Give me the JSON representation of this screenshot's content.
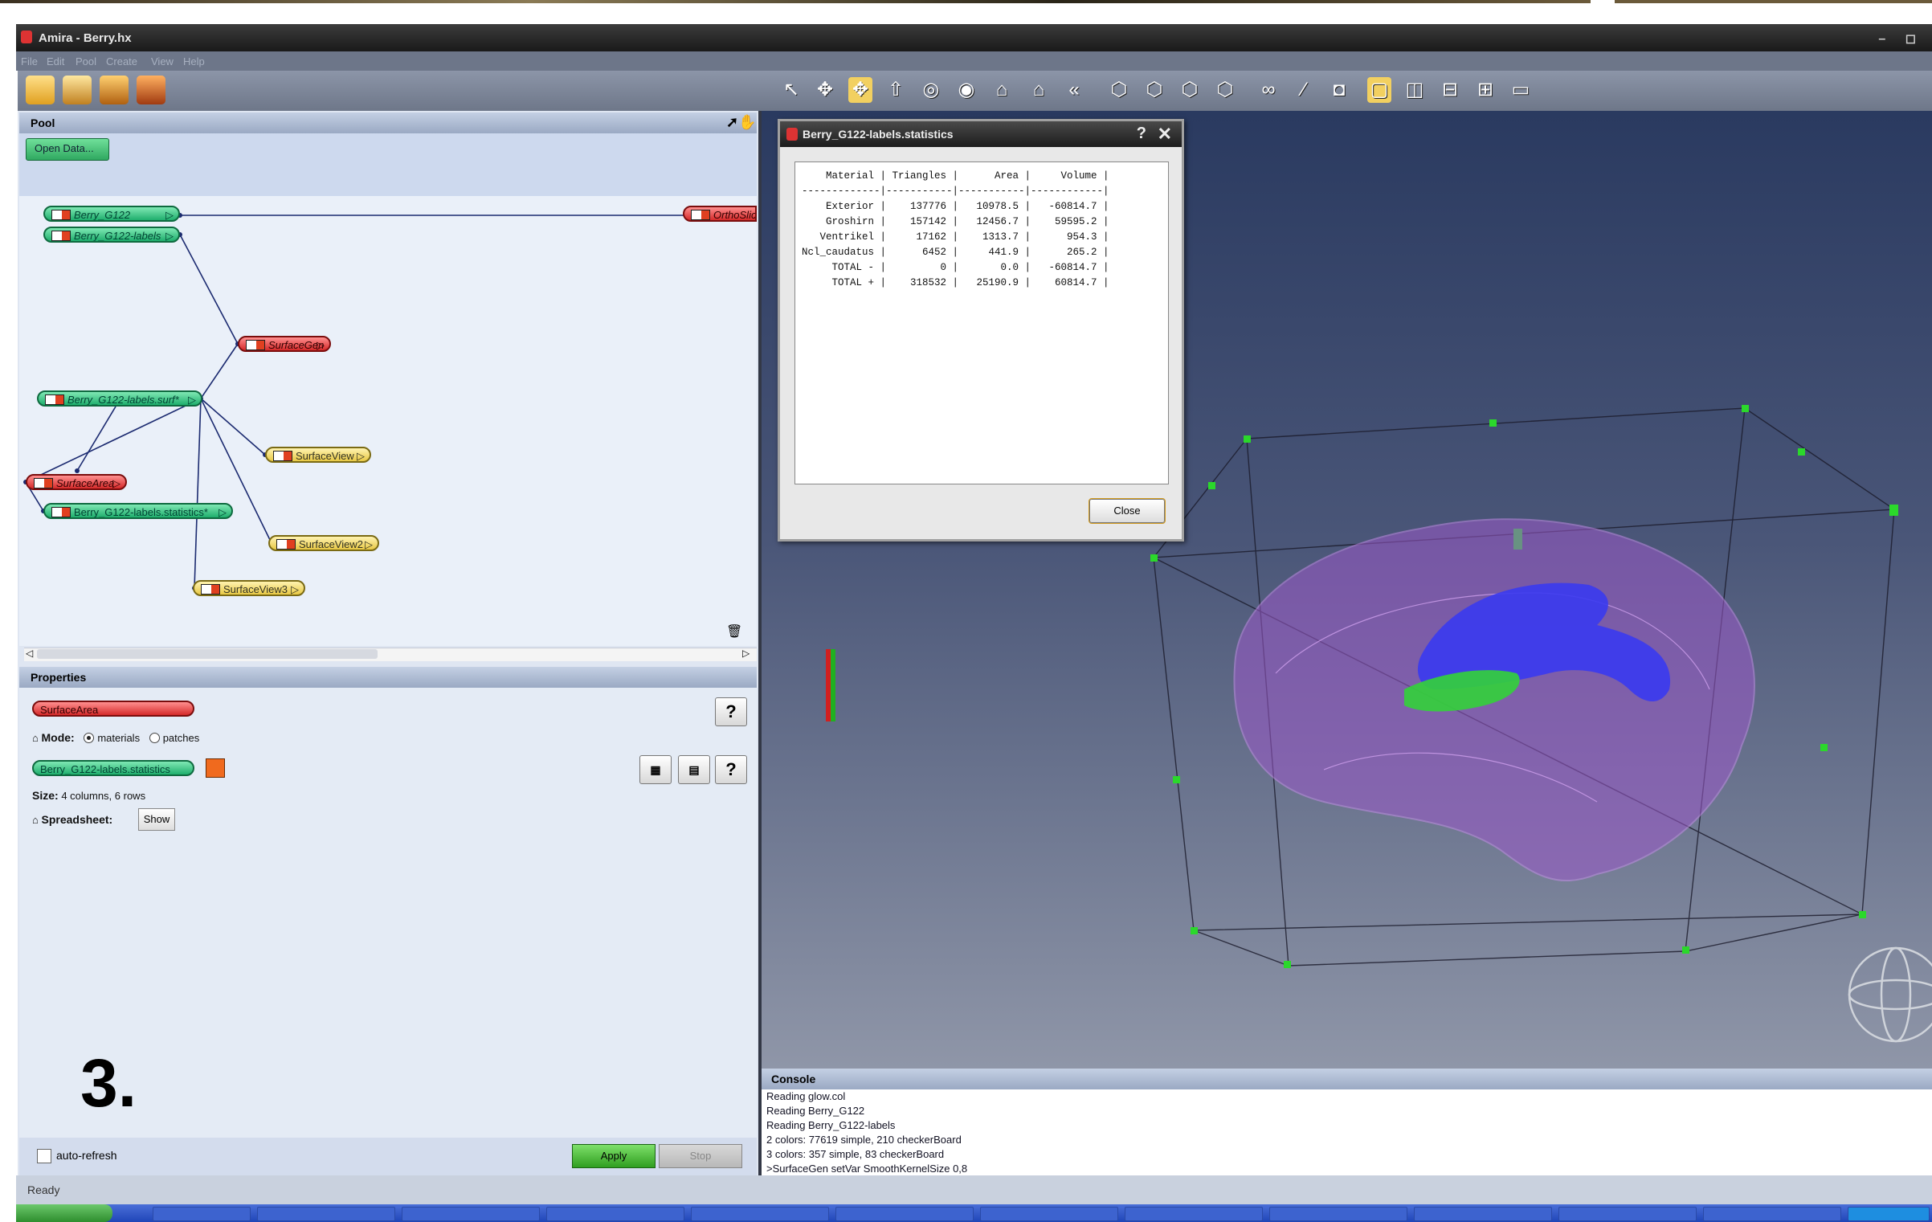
{
  "window": {
    "title": "Amira - Berry.hx",
    "menu": [
      "File",
      "Edit",
      "Pool",
      "Create",
      "View",
      "Help"
    ]
  },
  "pool": {
    "header": "Pool",
    "open_data_label": "Open Data...",
    "nodes": {
      "berry_g122": "Berry_G122",
      "berry_g122_labels": "Berry_G122-labels",
      "ortho_slice": "OrthoSlice",
      "surface_gen": "SurfaceGen",
      "labels_surf": "Berry_G122-labels.surf*",
      "surface_view": "SurfaceView",
      "surface_area": "SurfaceArea",
      "labels_statistics": "Berry_G122-labels.statistics*",
      "surface_view2": "SurfaceView2",
      "surface_view3": "SurfaceView3"
    }
  },
  "properties": {
    "header": "Properties",
    "module_name": "SurfaceArea",
    "mode_label": "Mode:",
    "mode_options": [
      "materials",
      "patches"
    ],
    "mode_selected": "materials",
    "result_name": "Berry_G122-labels.statistics",
    "size_label": "Size:",
    "size_value": "4 columns, 6 rows",
    "spreadsheet_label": "Spreadsheet:",
    "show_label": "Show",
    "help_label": "?"
  },
  "bottom": {
    "auto_refresh_label": "auto-refresh",
    "apply_label": "Apply",
    "stop_label": "Stop"
  },
  "dialog": {
    "title": "Berry_G122-labels.statistics",
    "help": "?",
    "close_x": "✕",
    "columns": [
      "Material",
      "Triangles",
      "Area",
      "Volume"
    ],
    "rows": [
      [
        "Exterior",
        "137776",
        "10978.5",
        "-60814.7"
      ],
      [
        "Groshirn",
        "157142",
        "12456.7",
        "59595.2"
      ],
      [
        "Ventrikel",
        "17162",
        "1313.7",
        "954.3"
      ],
      [
        "Ncl_caudatus",
        "6452",
        "441.9",
        "265.2"
      ],
      [
        "TOTAL -",
        "0",
        "0.0",
        "-60814.7"
      ],
      [
        "TOTAL +",
        "318532",
        "25190.9",
        "60814.7"
      ]
    ],
    "close_label": "Close"
  },
  "console": {
    "header": "Console",
    "lines": [
      "Reading glow.col",
      "Reading Berry_G122",
      "Reading Berry_G122-labels",
      "2 colors: 77619 simple, 210 checkerBoard",
      "3 colors: 357 simple, 83 checkerBoard",
      ">SurfaceGen setVar SmoothKernelSize 0,8"
    ]
  },
  "status": {
    "text": "Ready"
  },
  "overlay": {
    "step_number": "3."
  },
  "colors": {
    "green_node": "#1fae6d",
    "red_node": "#d52a2a",
    "yellow_node": "#e8c845",
    "brain_mesh": "#9b59c9",
    "ventricle": "#3a3af0",
    "caudate": "#33d13a"
  }
}
